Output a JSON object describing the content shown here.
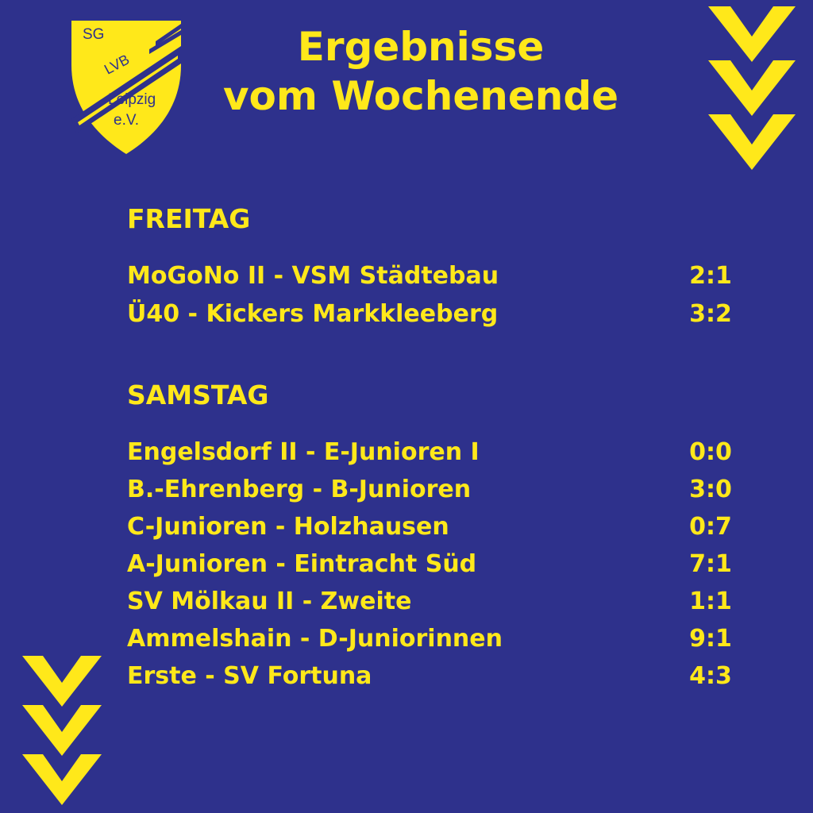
{
  "logo": {
    "top_text": "SG",
    "band_text": "LVB",
    "city": "Leipzig",
    "suffix": "e.V."
  },
  "title": {
    "line1": "Ergebnisse",
    "line2": "vom Wochenende"
  },
  "colors": {
    "background": "#2e318c",
    "accent": "#ffe81a"
  },
  "decor": {
    "top_right": "chevron-down-icon",
    "bottom_left": "chevron-down-icon"
  },
  "days": [
    {
      "label": "FREITAG",
      "matches": [
        {
          "match": "MoGoNo II - VSM Städtebau",
          "score": "2:1"
        },
        {
          "match": "Ü40 - Kickers Markkleeberg",
          "score": "3:2"
        }
      ]
    },
    {
      "label": "SAMSTAG",
      "matches": [
        {
          "match": "Engelsdorf II - E-Junioren I",
          "score": "0:0"
        },
        {
          "match": "B.-Ehrenberg - B-Junioren",
          "score": "3:0"
        },
        {
          "match": "C-Junioren - Holzhausen",
          "score": "0:7"
        },
        {
          "match": "A-Junioren - Eintracht Süd",
          "score": "7:1"
        },
        {
          "match": "SV Mölkau II - Zweite",
          "score": "1:1"
        },
        {
          "match": "Ammelshain - D-Juniorinnen",
          "score": "9:1"
        },
        {
          "match": "Erste - SV Fortuna",
          "score": "4:3"
        }
      ]
    }
  ]
}
